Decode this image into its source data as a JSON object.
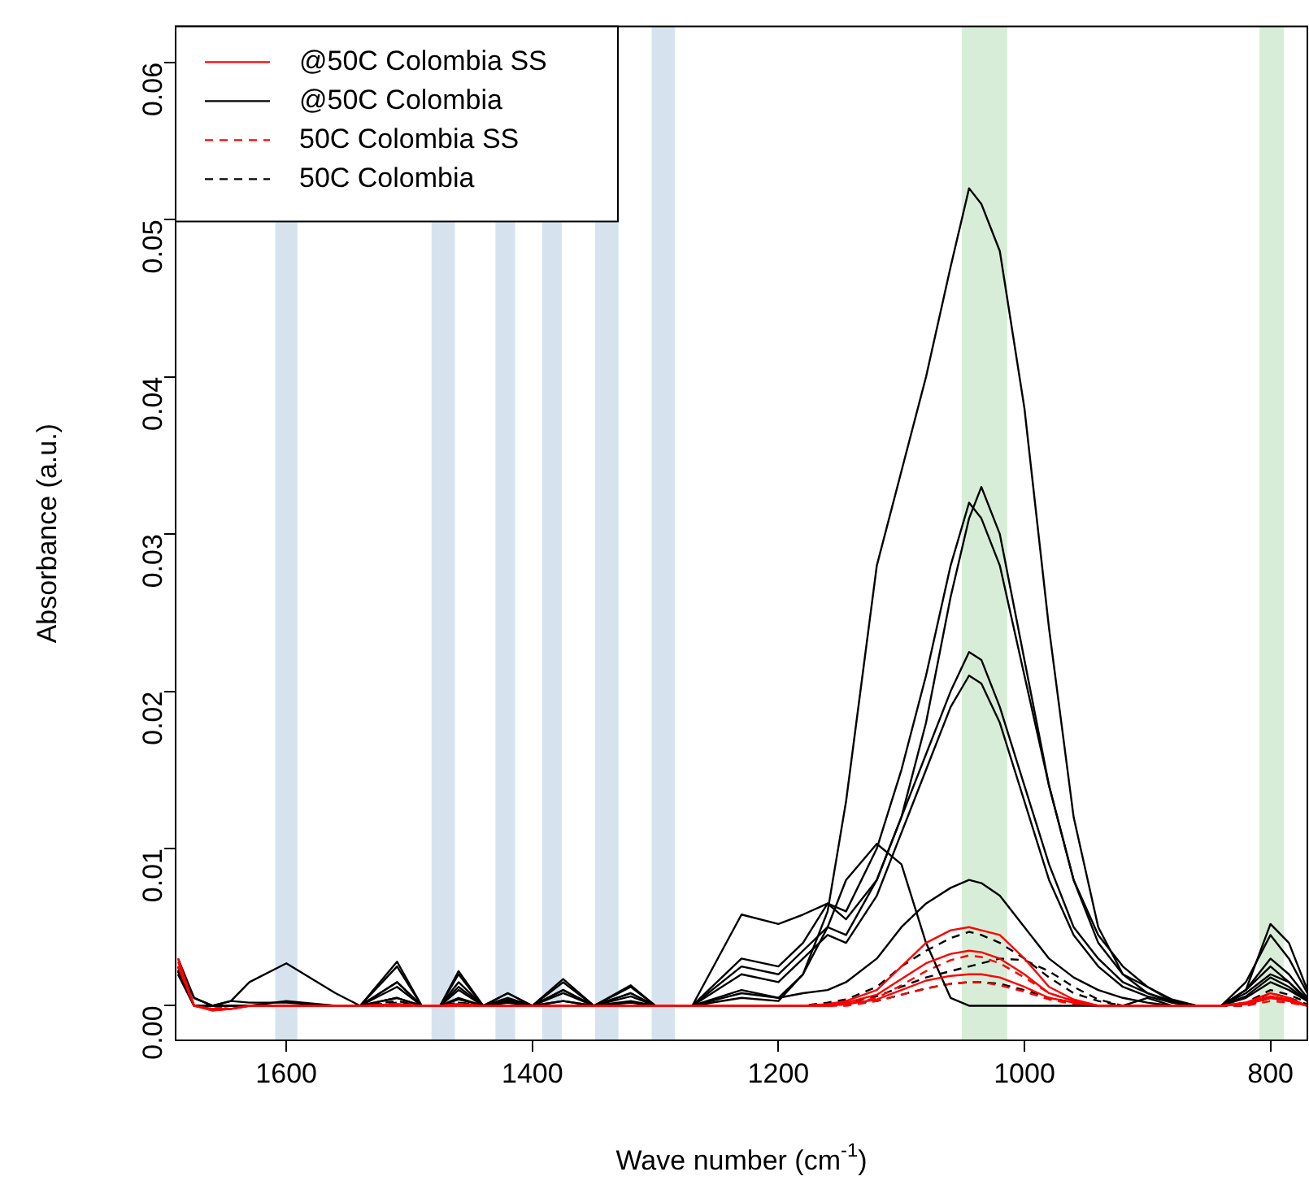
{
  "chart_data": {
    "type": "line",
    "xlabel": "Wave number (cm$^{-1}$)",
    "ylabel": "Absorbance (a.u.)",
    "xlim": [
      1690,
      770
    ],
    "ylim": [
      -0.0022,
      0.0623
    ],
    "xticks": [
      1600,
      1400,
      1200,
      1000,
      800
    ],
    "yticks": [
      {
        "value": 0,
        "label": "0.00"
      },
      {
        "value": 0.01,
        "label": "0.01"
      },
      {
        "value": 0.02,
        "label": "0.02"
      },
      {
        "value": 0.03,
        "label": "0.03"
      },
      {
        "value": 0.04,
        "label": "0.04"
      },
      {
        "value": 0.05,
        "label": "0.05"
      },
      {
        "value": 0.06,
        "label": "0.06"
      }
    ],
    "grid": false,
    "legend": "top left",
    "marker": "none",
    "x": [
      1688,
      1675,
      1660,
      1645,
      1630,
      1600,
      1560,
      1540,
      1510,
      1490,
      1475,
      1460,
      1440,
      1420,
      1400,
      1375,
      1350,
      1320,
      1300,
      1270,
      1230,
      1200,
      1180,
      1160,
      1145,
      1120,
      1100,
      1080,
      1060,
      1045,
      1035,
      1020,
      1000,
      980,
      960,
      940,
      920,
      900,
      880,
      860,
      840,
      820,
      800,
      785,
      770
    ],
    "bands": [
      {
        "axis": "x",
        "from": 1609,
        "to": 1591,
        "color": "#d6e3ef"
      },
      {
        "axis": "x",
        "from": 1482,
        "to": 1463,
        "color": "#d6e3ef"
      },
      {
        "axis": "x",
        "from": 1430,
        "to": 1414,
        "color": "#d6e3ef"
      },
      {
        "axis": "x",
        "from": 1392,
        "to": 1376,
        "color": "#d6e3ef"
      },
      {
        "axis": "x",
        "from": 1349,
        "to": 1330,
        "color": "#d6e3ef"
      },
      {
        "axis": "x",
        "from": 1303,
        "to": 1284,
        "color": "#d6e3ef"
      },
      {
        "axis": "x",
        "from": 1051,
        "to": 1014,
        "color": "#d8edd8"
      },
      {
        "axis": "x",
        "from": 809,
        "to": 789,
        "color": "#d8edd8"
      }
    ],
    "series": [
      {
        "name": "@50C Colombia SS",
        "color": "#ff0000",
        "line_style": "solid",
        "values": [
          0.003,
          0,
          -0.0003,
          -0.0002,
          0,
          0,
          0,
          0,
          0.0001,
          0,
          0,
          0.0001,
          0,
          0,
          0,
          0,
          0,
          0,
          0,
          0,
          0,
          0,
          0,
          0.0001,
          0.0003,
          0.001,
          0.0025,
          0.004,
          0.0048,
          0.005,
          0.0048,
          0.0045,
          0.003,
          0.0012,
          0.0004,
          0,
          0,
          0,
          0,
          0,
          0,
          0.0002,
          0.0008,
          0.0005,
          0
        ]
      },
      {
        "color": "#ff0000",
        "line_style": "solid",
        "values": [
          0.0028,
          0,
          -0.0003,
          -0.0002,
          0,
          0,
          0,
          0,
          0.0001,
          0,
          0,
          0.0001,
          0,
          0,
          0,
          0,
          0,
          0,
          0,
          0,
          0,
          0,
          0,
          0,
          0.0002,
          0.0007,
          0.0017,
          0.0027,
          0.0033,
          0.0035,
          0.0034,
          0.003,
          0.002,
          0.0008,
          0.0003,
          0,
          0,
          0,
          0,
          0,
          0,
          0.0002,
          0.0006,
          0.0004,
          0
        ]
      },
      {
        "color": "#ff0000",
        "line_style": "solid",
        "values": [
          0.0025,
          0,
          -0.0002,
          -0.0002,
          0,
          0,
          0,
          0,
          0,
          0,
          0,
          0,
          0,
          0,
          0,
          0,
          0,
          0,
          0,
          0,
          0,
          0,
          0,
          0,
          0.0001,
          0.0004,
          0.001,
          0.0016,
          0.0019,
          0.002,
          0.002,
          0.0018,
          0.0012,
          0.0005,
          0.0002,
          0,
          0,
          0,
          0,
          0,
          0,
          0.0001,
          0.0005,
          0.0003,
          0
        ]
      },
      {
        "name": "@50C Colombia",
        "color": "#000000",
        "line_style": "solid",
        "values": [
          0.0025,
          0.0005,
          0,
          0,
          0,
          0.0003,
          0,
          0,
          0.0005,
          0,
          0,
          0.0004,
          0,
          0.0002,
          0,
          0.0003,
          0,
          0.0002,
          0,
          0,
          0.0005,
          0.0003,
          0.002,
          0.006,
          0.013,
          0.028,
          0.034,
          0.04,
          0.047,
          0.052,
          0.051,
          0.048,
          0.038,
          0.024,
          0.012,
          0.005,
          0.002,
          0.0008,
          0.0003,
          0,
          0,
          0.0005,
          0.0015,
          0.001,
          0.0003
        ]
      },
      {
        "color": "#000000",
        "line_style": "solid",
        "values": [
          0.002,
          0,
          0,
          0.0003,
          0.0002,
          0.0002,
          0,
          0,
          0.0025,
          0,
          0,
          0.002,
          0,
          0.0008,
          0,
          0.0015,
          0,
          0.0012,
          0,
          0,
          0.003,
          0.0025,
          0.004,
          0.0065,
          0.0055,
          0.008,
          0.012,
          0.018,
          0.026,
          0.031,
          0.033,
          0.03,
          0.022,
          0.014,
          0.008,
          0.004,
          0.002,
          0.0012,
          0.0003,
          0,
          0,
          0.001,
          0.003,
          0.002,
          0.0005
        ]
      },
      {
        "color": "#000000",
        "line_style": "solid",
        "values": [
          0.002,
          0,
          0,
          0,
          0,
          0,
          0,
          0,
          0.0028,
          0,
          0,
          0.0022,
          0,
          0.0008,
          0,
          0.0017,
          0,
          0.0013,
          0,
          0,
          0.0058,
          0.0052,
          0.0058,
          0.0065,
          0.006,
          0.01,
          0.015,
          0.021,
          0.028,
          0.032,
          0.031,
          0.028,
          0.021,
          0.014,
          0.008,
          0.0045,
          0.0025,
          0.0012,
          0.0004,
          0,
          0,
          0.0015,
          0.0045,
          0.003,
          0.0008
        ]
      },
      {
        "color": "#000000",
        "line_style": "solid",
        "values": [
          0.0022,
          0,
          0,
          0,
          0,
          0,
          0,
          0,
          0.0015,
          0,
          0,
          0.0012,
          0,
          0.0004,
          0,
          0.001,
          0,
          0.0008,
          0,
          0,
          0.0025,
          0.002,
          0.0035,
          0.005,
          0.0045,
          0.008,
          0.012,
          0.016,
          0.02,
          0.0225,
          0.022,
          0.019,
          0.014,
          0.009,
          0.005,
          0.003,
          0.0015,
          0.0008,
          0.0002,
          0,
          0,
          0.0008,
          0.002,
          0.0015,
          0.0004
        ]
      },
      {
        "color": "#000000",
        "line_style": "solid",
        "values": [
          0.0022,
          0,
          0,
          0,
          0,
          0,
          0,
          0,
          0.0012,
          0,
          0,
          0.001,
          0,
          0.0003,
          0,
          0.0008,
          0,
          0.0006,
          0,
          0,
          0.002,
          0.0015,
          0.003,
          0.0045,
          0.004,
          0.007,
          0.011,
          0.015,
          0.019,
          0.021,
          0.0205,
          0.018,
          0.013,
          0.008,
          0.0045,
          0.0025,
          0.0012,
          0.0006,
          0.0002,
          0,
          0,
          0.0006,
          0.0018,
          0.0012,
          0.0003
        ]
      },
      {
        "color": "#000000",
        "line_style": "solid",
        "values": [
          0.003,
          0.0005,
          0,
          0.0003,
          0.0015,
          0.0027,
          0.0008,
          0,
          0.0015,
          0,
          0,
          0.0015,
          0,
          0.0005,
          0,
          0.001,
          0,
          0.0008,
          0,
          0,
          0.001,
          0.0005,
          0.002,
          0.005,
          0.008,
          0.0103,
          0.009,
          0.004,
          0.0005,
          0,
          0,
          0,
          0,
          0,
          0,
          0,
          0,
          0.0005,
          0,
          0,
          0,
          0.001,
          0.0025,
          0.0015,
          0.0003
        ]
      },
      {
        "color": "#000000",
        "line_style": "solid",
        "values": [
          0.0025,
          0,
          0,
          0,
          0,
          0,
          0,
          0,
          0.0005,
          0,
          0,
          0.0005,
          0,
          0,
          0,
          0.0003,
          0,
          0.0003,
          0,
          0,
          0.0008,
          0.0005,
          0.0008,
          0.001,
          0.0015,
          0.003,
          0.005,
          0.0065,
          0.0075,
          0.008,
          0.0078,
          0.007,
          0.005,
          0.003,
          0.0018,
          0.001,
          0.0005,
          0.0002,
          0,
          0,
          0,
          0.001,
          0.0052,
          0.004,
          0.001
        ]
      },
      {
        "name": "50C Colombia SS",
        "color": "#ff0000",
        "line_style": "dashed",
        "values": [
          0.0025,
          0,
          -0.0002,
          0,
          0,
          0,
          0,
          0,
          0,
          0,
          0,
          0,
          0,
          0,
          0,
          0,
          0,
          0,
          0,
          0,
          0,
          0,
          0,
          0,
          0.0001,
          0.0005,
          0.0013,
          0.0022,
          0.0029,
          0.0032,
          0.0031,
          0.0027,
          0.0018,
          0.0008,
          0.0003,
          0,
          0,
          0,
          0,
          0,
          0,
          0.0001,
          0.0005,
          0.0003,
          0
        ]
      },
      {
        "color": "#ff0000",
        "line_style": "dashed",
        "values": [
          0.0022,
          0,
          -0.0002,
          0,
          0,
          0,
          0,
          0,
          0,
          0,
          0,
          0,
          0,
          0,
          0,
          0,
          0,
          0,
          0,
          0,
          0,
          0,
          0,
          0,
          0,
          0.0003,
          0.0007,
          0.0011,
          0.0014,
          0.0015,
          0.0015,
          0.0013,
          0.0009,
          0.0004,
          0.0001,
          0,
          0,
          0,
          0,
          0,
          0,
          0,
          0.0003,
          0.0002,
          0
        ]
      },
      {
        "name": "50C Colombia",
        "color": "#000000",
        "line_style": "dashed",
        "values": [
          0.0025,
          0,
          0,
          0,
          0,
          0,
          0,
          0,
          0.0003,
          0,
          0,
          0.0002,
          0,
          0,
          0,
          0,
          0,
          0,
          0,
          0,
          0,
          0,
          0,
          0.0002,
          0.0004,
          0.0012,
          0.0025,
          0.0035,
          0.0043,
          0.0047,
          0.0045,
          0.004,
          0.003,
          0.0018,
          0.0008,
          0.0003,
          0,
          0,
          0,
          0,
          0,
          0.0002,
          0.001,
          0.0007,
          0.0002
        ]
      },
      {
        "color": "#000000",
        "line_style": "dashed",
        "values": [
          0.0023,
          0,
          0,
          0,
          0,
          0,
          0,
          0,
          0.0002,
          0,
          0,
          0.0002,
          0,
          0,
          0,
          0,
          0,
          0,
          0,
          0,
          0,
          0,
          0,
          0.0001,
          0.0002,
          0.0006,
          0.0012,
          0.0018,
          0.0022,
          0.0025,
          0.0027,
          0.003,
          0.0029,
          0.0022,
          0.0012,
          0.0004,
          0,
          0,
          0,
          0,
          0,
          0.0001,
          0.0008,
          0.0005,
          0.0001
        ]
      },
      {
        "color": "#000000",
        "line_style": "dashed",
        "values": [
          0.0022,
          0,
          0,
          0,
          0,
          0,
          0,
          0,
          0,
          0,
          0,
          0,
          0,
          0,
          0,
          0,
          0,
          0,
          0,
          0,
          0,
          0,
          0,
          0,
          0.0001,
          0.0003,
          0.0007,
          0.0011,
          0.0014,
          0.0015,
          0.0015,
          0.0014,
          0.001,
          0.0005,
          0.0002,
          0,
          0,
          0,
          0,
          0,
          0,
          0,
          0.0005,
          0.0003,
          0
        ]
      }
    ]
  }
}
